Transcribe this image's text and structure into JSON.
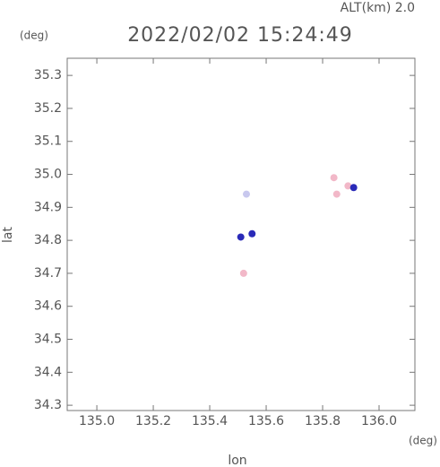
{
  "chart_data": {
    "type": "scatter",
    "title": "2022/02/02 15:24:49",
    "altitude_label": "ALT(km) 2.0",
    "x_label": "lon",
    "x_unit": "(deg)",
    "y_label": "lat",
    "y_unit": "(deg)",
    "xlim": [
      134.895,
      136.127
    ],
    "ylim": [
      34.284,
      35.352
    ],
    "xticks": [
      {
        "value": 135.0,
        "label": "135.0"
      },
      135.2,
      135.4,
      135.6,
      135.8,
      {
        "value": 136.0,
        "label": "136.0"
      }
    ],
    "yticks": [
      34.3,
      34.4,
      34.5,
      34.6,
      34.7,
      34.8,
      34.9,
      {
        "value": 35.0,
        "label": "35.0"
      },
      35.1,
      35.2,
      35.3
    ],
    "series": [
      {
        "color": "#f2b8c8",
        "x": [
          135.52,
          135.84,
          135.85,
          135.89
        ],
        "values": [
          34.7,
          34.99,
          34.94,
          34.965
        ]
      },
      {
        "color": "#c8c8ee",
        "x": [
          135.53
        ],
        "values": [
          34.94
        ]
      },
      {
        "color": "#2a2ab8",
        "x": [
          135.51,
          135.55,
          135.91
        ],
        "values": [
          34.81,
          34.82,
          34.96
        ]
      }
    ]
  }
}
